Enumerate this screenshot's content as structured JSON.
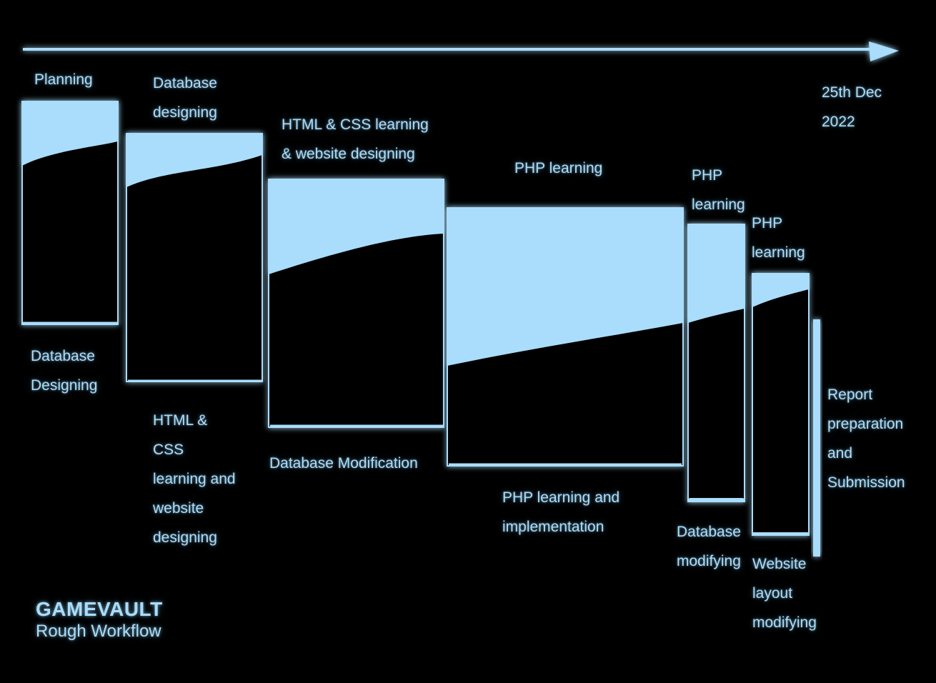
{
  "diagram": {
    "end_date": "25th Dec\n2022",
    "phases": [
      {
        "top_label": "Planning",
        "bottom_label": "Database\nDesigning"
      },
      {
        "top_label": "Database\ndesigning",
        "bottom_label": "HTML &\nCSS\nlearning and\nwebsite\ndesigning"
      },
      {
        "top_label": "HTML & CSS learning\n& website designing",
        "bottom_label": "Database Modification"
      },
      {
        "top_label": "PHP learning",
        "bottom_label": "PHP learning and\nimplementation"
      },
      {
        "top_label": "PHP\nlearning",
        "bottom_label": "Database\nmodifying"
      },
      {
        "top_label": "PHP\nlearning",
        "bottom_label": "Website\nlayout\nmodifying"
      },
      {
        "top_label": "",
        "bottom_label": ""
      }
    ],
    "side_label": "Report\npreparation\nand\nSubmission",
    "accent_color": "#a9ddfb"
  },
  "brand": {
    "title": "GAMEVAULT",
    "subtitle": "Rough Workflow"
  }
}
